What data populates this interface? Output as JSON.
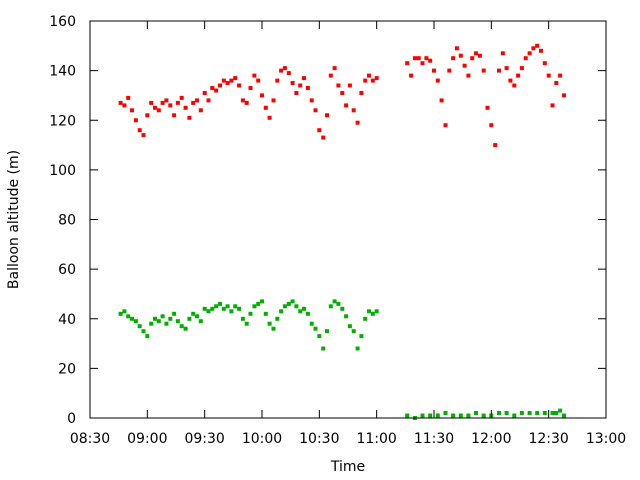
{
  "chart_data": {
    "type": "scatter",
    "title": "",
    "xlabel": "Time",
    "ylabel": "Balloon altitude (m)",
    "x_unit": "time of day (HH:MM)",
    "xlim": [
      "08:30",
      "13:00"
    ],
    "ylim": [
      0,
      160
    ],
    "xticks": [
      "08:30",
      "09:00",
      "09:30",
      "10:00",
      "10:30",
      "11:00",
      "11:30",
      "12:00",
      "12:30",
      "13:00"
    ],
    "yticks": [
      0,
      20,
      40,
      60,
      80,
      100,
      120,
      140,
      160
    ],
    "grid": false,
    "legend": "none",
    "series": [
      {
        "color": "#ff0000",
        "x": [
          "08:46",
          "08:48",
          "08:50",
          "08:52",
          "08:54",
          "08:56",
          "08:58",
          "09:00",
          "09:02",
          "09:04",
          "09:06",
          "09:08",
          "09:10",
          "09:12",
          "09:14",
          "09:16",
          "09:18",
          "09:20",
          "09:22",
          "09:24",
          "09:26",
          "09:28",
          "09:30",
          "09:32",
          "09:34",
          "09:36",
          "09:38",
          "09:40",
          "09:42",
          "09:44",
          "09:46",
          "09:48",
          "09:50",
          "09:52",
          "09:54",
          "09:56",
          "09:58",
          "10:00",
          "10:02",
          "10:04",
          "10:06",
          "10:08",
          "10:10",
          "10:12",
          "10:14",
          "10:16",
          "10:18",
          "10:20",
          "10:22",
          "10:24",
          "10:26",
          "10:28",
          "10:30",
          "10:32",
          "10:34",
          "10:36",
          "10:38",
          "10:40",
          "10:42",
          "10:44",
          "10:46",
          "10:48",
          "10:50",
          "10:52",
          "10:54",
          "10:56",
          "10:58",
          "11:00",
          "11:16",
          "11:18",
          "11:20",
          "11:22",
          "11:24",
          "11:26",
          "11:28",
          "11:30",
          "11:32",
          "11:34",
          "11:36",
          "11:38",
          "11:40",
          "11:42",
          "11:44",
          "11:46",
          "11:48",
          "11:50",
          "11:52",
          "11:54",
          "11:56",
          "11:58",
          "12:00",
          "12:02",
          "12:04",
          "12:06",
          "12:08",
          "12:10",
          "12:12",
          "12:14",
          "12:16",
          "12:18",
          "12:20",
          "12:22",
          "12:24",
          "12:26",
          "12:28",
          "12:30",
          "12:32",
          "12:34",
          "12:36",
          "12:38"
        ],
        "y": [
          127,
          126,
          129,
          124,
          120,
          116,
          114,
          122,
          127,
          125,
          124,
          127,
          128,
          126,
          122,
          127,
          129,
          125,
          121,
          127,
          128,
          124,
          131,
          128,
          133,
          132,
          134,
          136,
          135,
          136,
          137,
          134,
          128,
          127,
          133,
          138,
          136,
          130,
          125,
          121,
          128,
          136,
          140,
          141,
          139,
          135,
          131,
          134,
          137,
          133,
          128,
          124,
          116,
          113,
          122,
          138,
          141,
          134,
          131,
          126,
          134,
          124,
          119,
          131,
          136,
          138,
          136,
          137,
          143,
          138,
          145,
          145,
          143,
          145,
          144,
          140,
          136,
          128,
          118,
          140,
          145,
          149,
          146,
          142,
          138,
          145,
          147,
          146,
          140,
          125,
          118,
          110,
          140,
          147,
          141,
          136,
          134,
          138,
          141,
          145,
          147,
          149,
          150,
          148,
          143,
          138,
          126,
          135,
          138,
          130
        ],
        "name": ""
      },
      {
        "color": "#00b000",
        "x": [
          "08:46",
          "08:48",
          "08:50",
          "08:52",
          "08:54",
          "08:56",
          "08:58",
          "09:00",
          "09:02",
          "09:04",
          "09:06",
          "09:08",
          "09:10",
          "09:12",
          "09:14",
          "09:16",
          "09:18",
          "09:20",
          "09:22",
          "09:24",
          "09:26",
          "09:28",
          "09:30",
          "09:32",
          "09:34",
          "09:36",
          "09:38",
          "09:40",
          "09:42",
          "09:44",
          "09:46",
          "09:48",
          "09:50",
          "09:52",
          "09:54",
          "09:56",
          "09:58",
          "10:00",
          "10:02",
          "10:04",
          "10:06",
          "10:08",
          "10:10",
          "10:12",
          "10:14",
          "10:16",
          "10:18",
          "10:20",
          "10:22",
          "10:24",
          "10:26",
          "10:28",
          "10:30",
          "10:32",
          "10:34",
          "10:36",
          "10:38",
          "10:40",
          "10:42",
          "10:44",
          "10:46",
          "10:48",
          "10:50",
          "10:52",
          "10:54",
          "10:56",
          "10:58",
          "11:00",
          "11:16",
          "11:20",
          "11:24",
          "11:28",
          "11:32",
          "11:36",
          "11:40",
          "11:44",
          "11:48",
          "11:52",
          "11:56",
          "12:00",
          "12:04",
          "12:08",
          "12:12",
          "12:16",
          "12:20",
          "12:24",
          "12:28",
          "12:32",
          "12:34",
          "12:36",
          "12:38"
        ],
        "y": [
          42,
          43,
          41,
          40,
          39,
          37,
          35,
          33,
          38,
          40,
          39,
          41,
          38,
          40,
          42,
          39,
          37,
          36,
          40,
          42,
          41,
          39,
          44,
          43,
          44,
          45,
          46,
          44,
          45,
          43,
          45,
          44,
          40,
          38,
          42,
          45,
          46,
          47,
          42,
          38,
          36,
          40,
          43,
          45,
          46,
          47,
          45,
          43,
          44,
          42,
          38,
          36,
          33,
          28,
          35,
          45,
          47,
          46,
          44,
          41,
          37,
          35,
          28,
          33,
          40,
          43,
          42,
          43,
          1,
          0,
          1,
          1,
          1,
          2,
          1,
          1,
          1,
          2,
          1,
          1,
          2,
          2,
          1,
          2,
          2,
          2,
          2,
          2,
          2,
          3,
          1
        ],
        "name": ""
      }
    ]
  }
}
